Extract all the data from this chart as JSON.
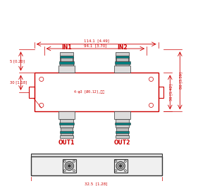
{
  "bg_color": "#ffffff",
  "line_color": "#cc0000",
  "connector_outline": "#333333",
  "connector_ring": "#008080",
  "dim_color": "#cc0000",
  "annotations": {
    "top_dim1": "114.1  [4.49]",
    "top_dim2": "94.1  [3.70]",
    "left_dim1": "5 [0.20]",
    "left_dim2": "30 [1.18]",
    "right_dim1": "36 [1.42]",
    "right_dim2": "86 [3.39]",
    "bottom_dim": "32.5  [1.28]",
    "hole_note": "4-φ3 [Ø0.12],速孔",
    "in1": "IN1",
    "in2": "IN2",
    "out1": "OUT1",
    "out2": "OUT2"
  }
}
